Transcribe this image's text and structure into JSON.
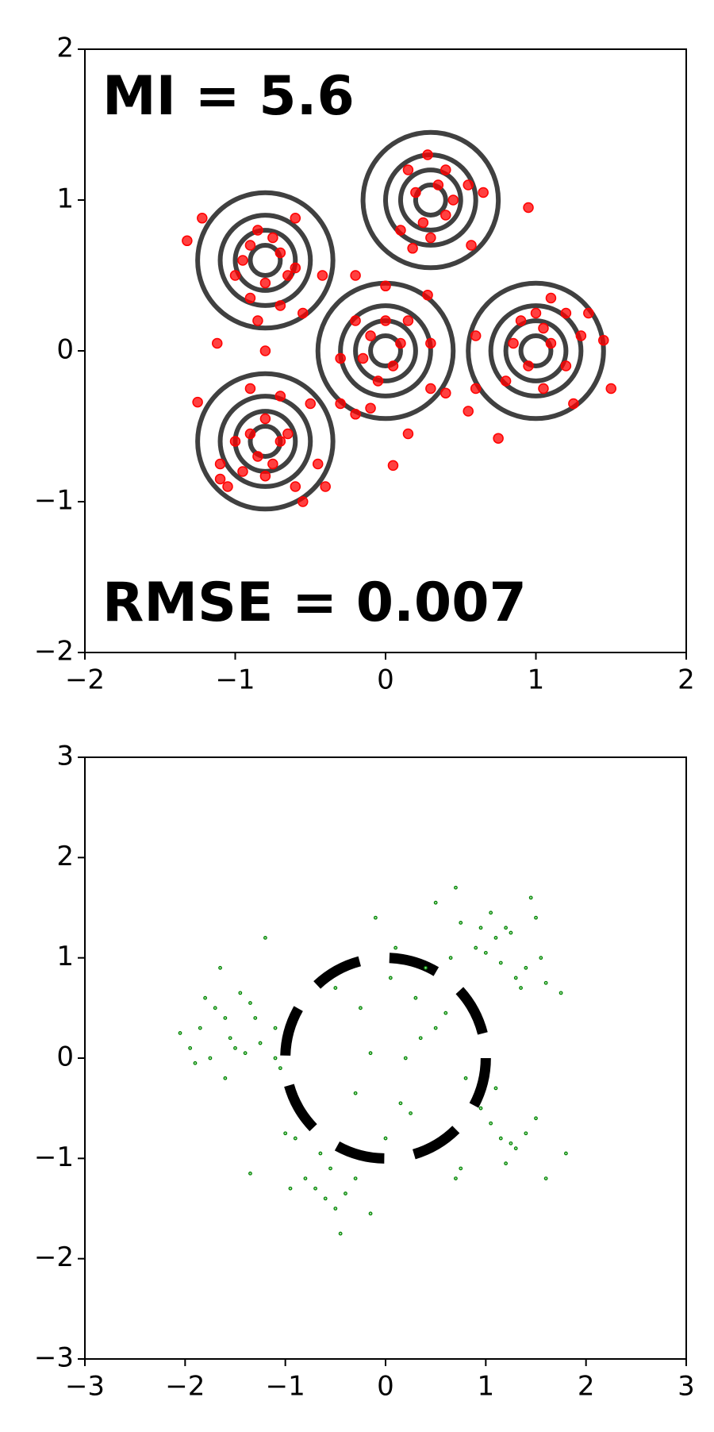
{
  "chart_data": [
    {
      "type": "scatter",
      "color": "#ff0000",
      "annotations": [
        "MI = 5.6",
        "RMSE = 0.007"
      ],
      "xlim": [
        -2,
        2
      ],
      "ylim": [
        -2,
        2
      ],
      "xticks": [
        {
          "value": -2,
          "label": "−2"
        },
        {
          "value": -1,
          "label": "−1"
        },
        0,
        1,
        2
      ],
      "yticks": [
        {
          "value": -2,
          "label": "−2"
        },
        {
          "value": -1,
          "label": "−1"
        },
        0,
        1,
        2
      ],
      "contour": {
        "color": "#404040",
        "x": [
          -0.8,
          0.3,
          0,
          1,
          -0.8
        ],
        "y": [
          0.6,
          1.0,
          0,
          0,
          -0.6
        ],
        "levels": [
          0.1,
          0.2,
          0.3,
          0.45
        ]
      },
      "x": [
        -0.85,
        -0.75,
        -0.9,
        -0.7,
        -0.95,
        -0.65,
        -0.8,
        -0.9,
        -0.7,
        -0.6,
        -1.0,
        -0.55,
        -0.6,
        -1.22,
        -1.32,
        -0.42,
        -0.85,
        -0.8,
        -1.12,
        0.28,
        0.35,
        0.2,
        0.4,
        0.25,
        0.45,
        0.15,
        0.55,
        0.65,
        0.3,
        0.1,
        0.57,
        0.95,
        0.4,
        0.18,
        0,
        -0.1,
        0.1,
        -0.15,
        0.05,
        -0.05,
        0.15,
        -0.2,
        0.3,
        -0.3,
        -0.1,
        0.28,
        0.3,
        -0.2,
        0,
        0.15,
        0.05,
        -0.3,
        0.4,
        0.9,
        1.05,
        0.95,
        1.1,
        0.85,
        1.2,
        1.3,
        1.45,
        1.35,
        1.05,
        0.8,
        1.25,
        1.5,
        0.6,
        0.75,
        1.1,
        0.55,
        0.6,
        1.0,
        1.2,
        -0.8,
        -0.9,
        -0.7,
        -0.85,
        -0.75,
        -1.0,
        -0.65,
        -0.95,
        -0.8,
        -1.1,
        -1.1,
        -1.05,
        -0.6,
        -1.25,
        -0.5,
        -0.45,
        -0.55,
        -0.7,
        -0.9,
        -0.4,
        -0.2
      ],
      "y": [
        0.8,
        0.75,
        0.7,
        0.65,
        0.6,
        0.5,
        0.45,
        0.35,
        0.3,
        0.55,
        0.5,
        0.25,
        0.88,
        0.88,
        0.73,
        0.5,
        0.2,
        0.0,
        0.05,
        1.3,
        1.1,
        1.05,
        0.9,
        0.85,
        1.0,
        1.2,
        1.1,
        1.05,
        0.75,
        0.8,
        0.7,
        0.95,
        1.2,
        0.68,
        0.2,
        0.1,
        0.05,
        -0.05,
        -0.1,
        -0.2,
        0.2,
        0.2,
        0.05,
        -0.05,
        -0.38,
        0.37,
        -0.25,
        0.5,
        0.43,
        -0.55,
        -0.76,
        -0.35,
        -0.28,
        0.2,
        0.15,
        -0.1,
        0.05,
        0.05,
        -0.1,
        0.1,
        0.07,
        0.25,
        -0.25,
        -0.2,
        -0.35,
        -0.25,
        -0.25,
        -0.58,
        0.35,
        -0.4,
        0.1,
        0.25,
        0.25,
        -0.45,
        -0.55,
        -0.6,
        -0.7,
        -0.75,
        -0.6,
        -0.55,
        -0.8,
        -0.83,
        -0.75,
        -0.85,
        -0.9,
        -0.9,
        -0.34,
        -0.35,
        -0.75,
        -1.0,
        -0.3,
        -0.25,
        -0.9,
        -0.42
      ]
    },
    {
      "type": "scatter",
      "color": "#008000",
      "xlim": [
        -3,
        3
      ],
      "ylim": [
        -3,
        3
      ],
      "xticks": [
        {
          "value": -3,
          "label": "−3"
        },
        {
          "value": -2,
          "label": "−2"
        },
        {
          "value": -1,
          "label": "−1"
        },
        0,
        1,
        2,
        3
      ],
      "yticks": [
        {
          "value": -3,
          "label": "−3"
        },
        {
          "value": -2,
          "label": "−2"
        },
        {
          "value": -1,
          "label": "−1"
        },
        0,
        1,
        2,
        3
      ],
      "circle": {
        "cx": 0,
        "cy": 0,
        "r": 1,
        "color": "#000000"
      },
      "x": [
        -2.05,
        -1.95,
        -1.85,
        -1.8,
        -1.75,
        -1.7,
        -1.65,
        -1.6,
        -1.55,
        -1.5,
        -1.45,
        -1.4,
        -1.35,
        -1.3,
        -1.25,
        -1.9,
        -1.6,
        -1.2,
        -1.1,
        -1.05,
        0.5,
        0.7,
        0.75,
        0.9,
        1.0,
        1.1,
        1.2,
        1.3,
        1.4,
        1.45,
        1.5,
        1.55,
        1.6,
        1.35,
        1.25,
        1.15,
        1.05,
        0.95,
        0.65,
        1.75,
        0.8,
        0.95,
        1.05,
        1.15,
        1.2,
        1.3,
        1.4,
        1.5,
        1.6,
        1.8,
        0.7,
        1.1,
        0.75,
        1.25,
        -0.9,
        -0.8,
        -0.7,
        -0.65,
        -0.6,
        -0.55,
        -0.5,
        -0.45,
        -0.4,
        -0.3,
        -0.15,
        -1.0,
        -1.35,
        -0.95,
        -0.1,
        0.1,
        0.3,
        0.5,
        0.2,
        -0.25,
        0.0,
        0.4,
        -0.5,
        0.15,
        -0.15,
        0.35,
        -0.3,
        0.05,
        0.6,
        0.25,
        -1.1
      ],
      "y": [
        0.25,
        0.1,
        0.3,
        0.6,
        0.0,
        0.5,
        0.9,
        -0.2,
        0.2,
        0.1,
        0.65,
        0.05,
        0.55,
        0.4,
        0.15,
        -0.05,
        0.4,
        1.2,
        0.3,
        -0.1,
        1.55,
        1.7,
        1.35,
        1.1,
        1.05,
        1.2,
        1.3,
        0.8,
        0.9,
        1.6,
        1.4,
        1.0,
        0.75,
        0.7,
        1.25,
        0.95,
        1.45,
        1.3,
        1.0,
        0.65,
        -0.2,
        -0.5,
        -0.65,
        -0.8,
        -1.05,
        -0.9,
        -0.75,
        -0.6,
        -1.2,
        -0.95,
        -1.2,
        -0.3,
        -1.1,
        -0.85,
        -0.8,
        -1.2,
        -1.3,
        -0.95,
        -1.4,
        -1.1,
        -1.5,
        -1.75,
        -1.35,
        -1.2,
        -1.55,
        -0.75,
        -1.15,
        -1.3,
        1.4,
        1.1,
        0.6,
        0.3,
        0.0,
        0.5,
        -0.8,
        0.9,
        0.7,
        -0.45,
        0.05,
        0.2,
        -0.35,
        0.8,
        0.45,
        -0.55,
        0.0
      ]
    }
  ]
}
